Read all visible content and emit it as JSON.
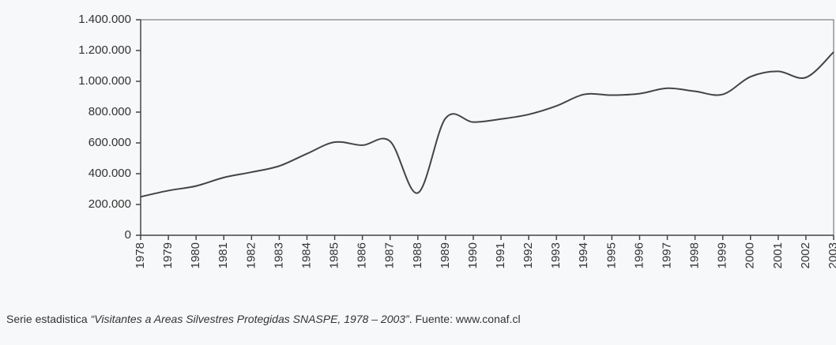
{
  "chart_data": {
    "type": "line",
    "x": [
      1978,
      1979,
      1980,
      1981,
      1982,
      1983,
      1984,
      1985,
      1986,
      1987,
      1988,
      1989,
      1990,
      1991,
      1992,
      1993,
      1994,
      1995,
      1996,
      1997,
      1998,
      1999,
      2000,
      2001,
      2002,
      2003
    ],
    "series": [
      {
        "color": "#444444",
        "values": [
          250000,
          290000,
          320000,
          375000,
          410000,
          450000,
          530000,
          605000,
          585000,
          610000,
          275000,
          760000,
          735000,
          755000,
          785000,
          840000,
          915000,
          910000,
          920000,
          955000,
          935000,
          915000,
          1030000,
          1065000,
          1025000,
          1190000
        ]
      }
    ],
    "xlim": [
      1978,
      2003
    ],
    "xticks": [
      1978,
      1979,
      1980,
      1981,
      1982,
      1983,
      1984,
      1985,
      1986,
      1987,
      1988,
      1989,
      1990,
      1991,
      1992,
      1993,
      1994,
      1995,
      1996,
      1997,
      1998,
      1999,
      2000,
      2001,
      2002,
      2003
    ],
    "ylim": [
      0,
      1400000
    ],
    "yticks": [
      0,
      {
        "value": 200000,
        "label": "200.000"
      },
      {
        "value": 400000,
        "label": "400.000"
      },
      {
        "value": 600000,
        "label": "600.000"
      },
      {
        "value": 800000,
        "label": "800.000"
      },
      {
        "value": 1000000,
        "label": "1.000.000"
      },
      {
        "value": 1200000,
        "label": "1.200.000"
      },
      {
        "value": 1400000,
        "label": "1.400.000"
      }
    ],
    "caption": {
      "prefix": "Serie estadistica ",
      "title": "“Visitantes a Areas Silvestres Protegidas SNASPE, 1978 – 2003”",
      "suffix": ". Fuente: www.conaf.cl"
    }
  }
}
